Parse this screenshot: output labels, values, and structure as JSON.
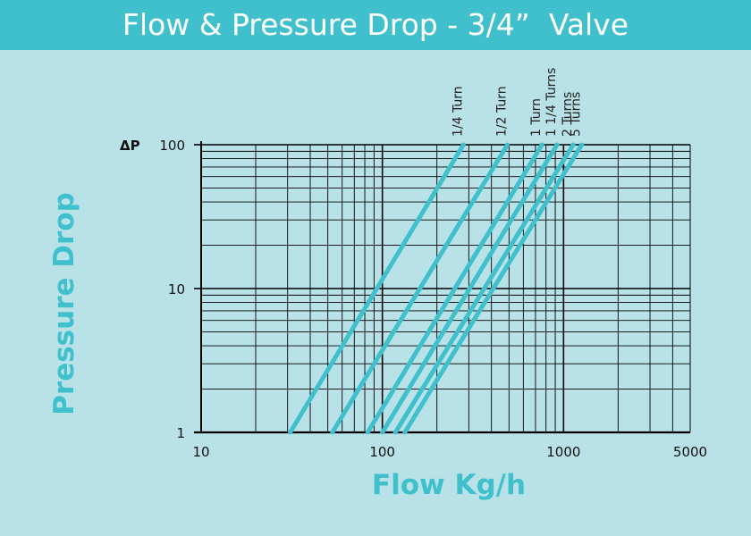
{
  "header": {
    "title": "Flow & Pressure Drop - 3/4”  Valve"
  },
  "colors": {
    "background": "#b8e2e8",
    "banner": "#3fc0cc",
    "accent": "#3fc0cc",
    "grid": "#000000"
  },
  "chart_data": {
    "type": "line",
    "title": "Flow & Pressure Drop - 3/4”  Valve",
    "xlabel": "Flow Kg/h",
    "ylabel": "Pressure Drop",
    "y_axis_symbol": "ΔP",
    "x_scale": "log",
    "y_scale": "log",
    "xlim": [
      10,
      5000
    ],
    "ylim": [
      1,
      100
    ],
    "x_ticks": [
      {
        "value": 10,
        "label": "10"
      },
      {
        "value": 100,
        "label": "100"
      },
      {
        "value": 1000,
        "label": "1000"
      },
      {
        "value": 5000,
        "label": "5000"
      }
    ],
    "y_ticks": [
      {
        "value": 1,
        "label": "1"
      },
      {
        "value": 10,
        "label": "10"
      },
      {
        "value": 100,
        "label": "100"
      }
    ],
    "grid": true,
    "series": [
      {
        "name": "1/4 Turn",
        "x": [
          31,
          280
        ],
        "y": [
          1,
          100
        ]
      },
      {
        "name": "1/2 Turn",
        "x": [
          53,
          490
        ],
        "y": [
          1,
          100
        ]
      },
      {
        "name": "1 Turn",
        "x": [
          83,
          760
        ],
        "y": [
          1,
          100
        ]
      },
      {
        "name": "1 1/4 Turns",
        "x": [
          100,
          920
        ],
        "y": [
          1,
          100
        ]
      },
      {
        "name": "2 Turns",
        "x": [
          118,
          1130
        ],
        "y": [
          1,
          100
        ]
      },
      {
        "name": "5 Turns",
        "x": [
          133,
          1260
        ],
        "y": [
          1,
          100
        ]
      }
    ]
  }
}
